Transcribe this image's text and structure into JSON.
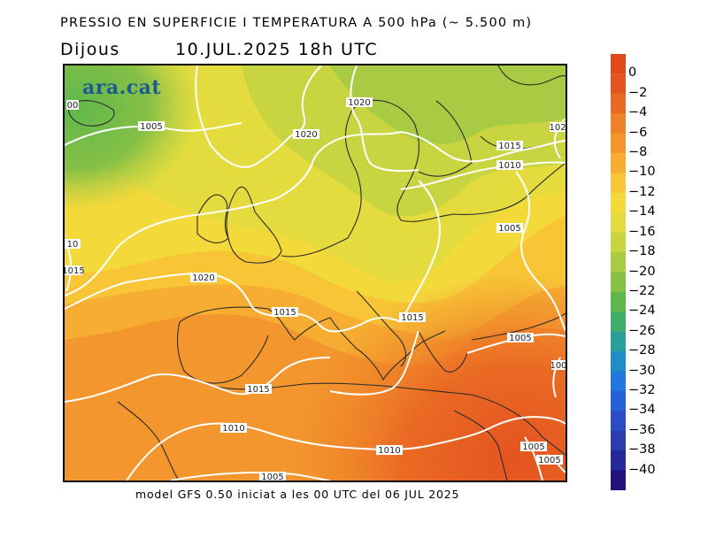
{
  "header": {
    "title": "PRESSIO EN SUPERFICIE I TEMPERATURA A 500 hPa (~ 5.500 m)",
    "day": "Dijous",
    "date": "10.JUL.2025 18h UTC"
  },
  "footer": "model GFS 0.50 iniciat a les 00 UTC del 06 JUL 2025",
  "map": {
    "logo": "ara.cat",
    "isobar_labels": [
      "00",
      "1005",
      "1020",
      "1020",
      "1015",
      "1010",
      "1005",
      "10",
      "1015",
      "1020",
      "1015",
      "1015",
      "1005",
      "1015",
      "1010",
      "1010",
      "1005",
      "1005",
      "1005",
      "102",
      "100"
    ]
  },
  "colorbar": {
    "labels": [
      "0",
      "−2",
      "−4",
      "−6",
      "−8",
      "−10",
      "−12",
      "−14",
      "−16",
      "−18",
      "−20",
      "−22",
      "−24",
      "−26",
      "−28",
      "−30",
      "−32",
      "−34",
      "−36",
      "−38",
      "−40"
    ],
    "colors": [
      "#e35420",
      "#ea6a24",
      "#ef8129",
      "#f3962d",
      "#f6ad31",
      "#f7c536",
      "#f4d93b",
      "#e4dc3e",
      "#c9d540",
      "#a9cb43",
      "#86c046",
      "#5fb84c",
      "#41ad6b",
      "#2a9f99",
      "#1e8fc2",
      "#2176e0",
      "#2660d6",
      "#2b4cc4",
      "#2a3cb0",
      "#26299a",
      "#23117c"
    ]
  }
}
